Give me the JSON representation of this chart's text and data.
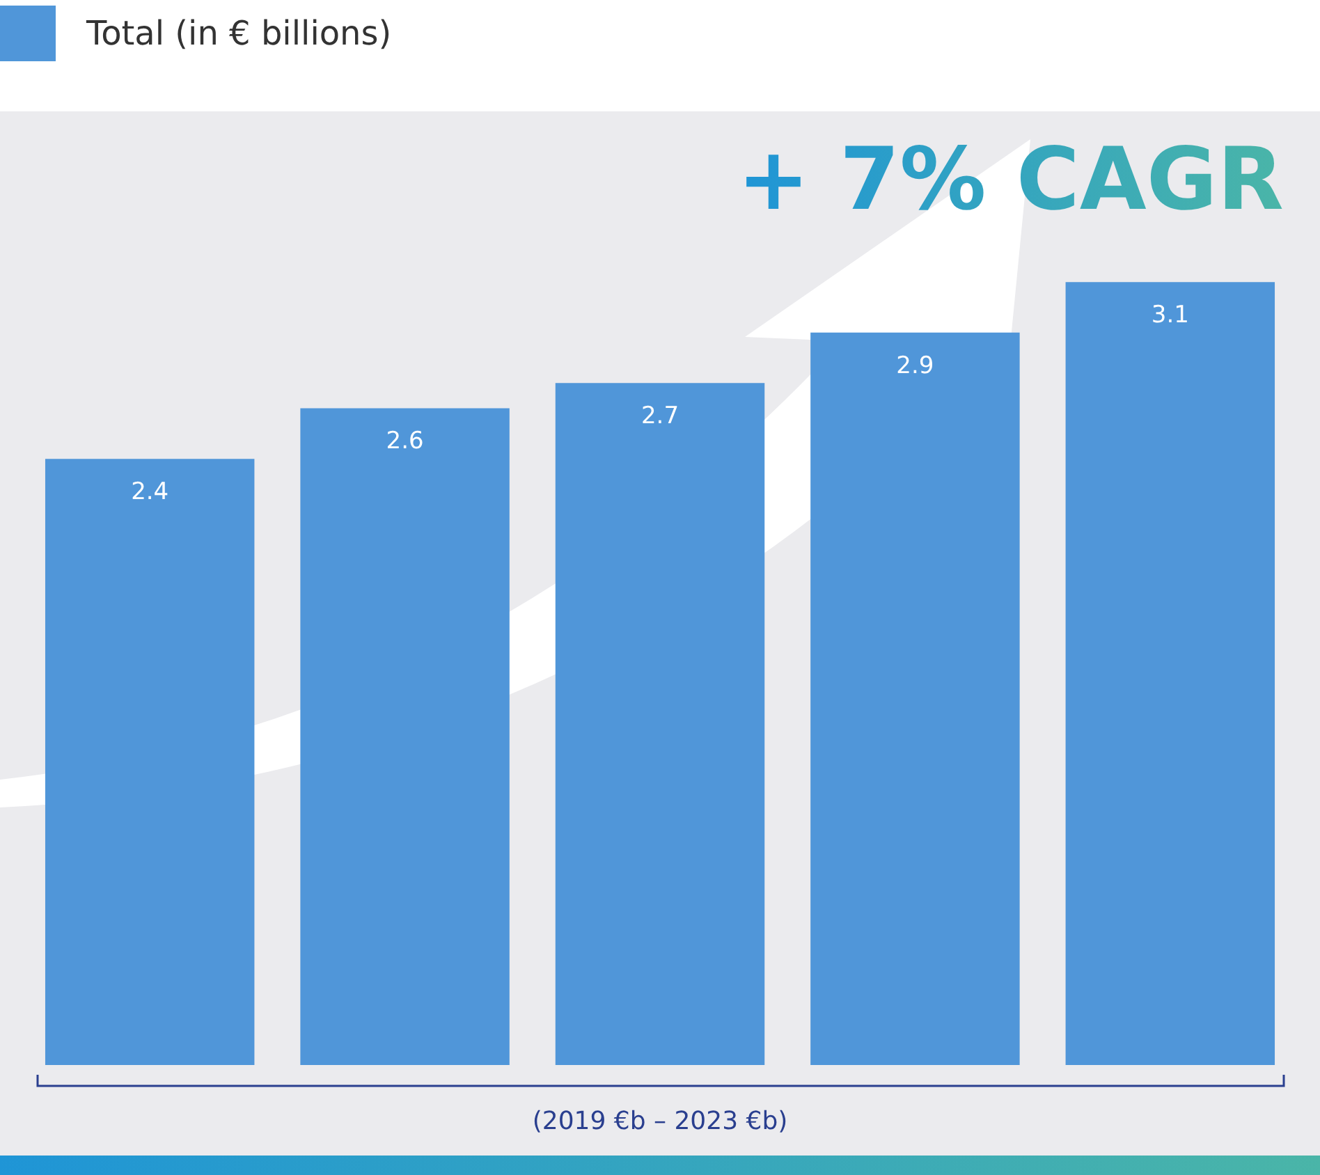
{
  "chart_data": {
    "type": "bar",
    "categories": [
      null,
      null,
      null,
      null,
      null
    ],
    "series": [
      {
        "name": "Total (in € billions)",
        "color": "#5096d9",
        "values": [
          2.4,
          2.6,
          2.7,
          2.9,
          3.1
        ]
      }
    ],
    "legend": "top left",
    "data_labels": true,
    "annotations": [
      "+ 7% CAGR",
      "(2019 €b – 2023 €b)"
    ]
  }
}
